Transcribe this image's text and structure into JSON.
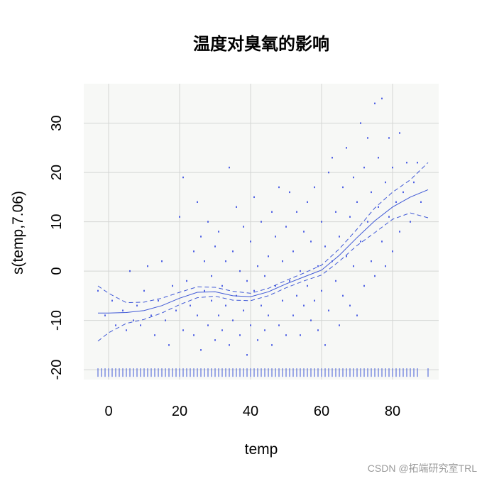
{
  "chart_data": {
    "type": "line",
    "title": "温度对臭氧的影响",
    "xlabel": "temp",
    "ylabel": "s(temp,7.06)",
    "xlim": [
      -7,
      93
    ],
    "ylim": [
      -22,
      38
    ],
    "x_ticks": [
      0,
      20,
      40,
      60,
      80
    ],
    "x_tick_labels": [
      "0",
      "20",
      "40",
      "60",
      "80"
    ],
    "y_ticks": [
      -20,
      -10,
      0,
      10,
      20,
      30
    ],
    "y_tick_labels": [
      "-20",
      "-10",
      "0",
      "10",
      "20",
      "30"
    ],
    "grid": true,
    "series": [
      {
        "style": "solid",
        "x": [
          -3,
          0,
          5,
          10,
          15,
          20,
          25,
          30,
          35,
          40,
          45,
          50,
          55,
          60,
          65,
          70,
          75,
          80,
          85,
          90
        ],
        "y": [
          -8.5,
          -8.5,
          -8.4,
          -8.0,
          -7.0,
          -5.5,
          -4.3,
          -4.2,
          -5.0,
          -5.2,
          -4.2,
          -2.6,
          -1.2,
          0.2,
          3.2,
          6.8,
          10.2,
          13.0,
          15.0,
          16.5
        ]
      },
      {
        "style": "dashed",
        "x": [
          -3,
          0,
          5,
          10,
          15,
          20,
          25,
          30,
          35,
          40,
          45,
          50,
          55,
          60,
          65,
          70,
          75,
          80,
          85,
          90
        ],
        "y": [
          -3.0,
          -4.5,
          -6.4,
          -6.3,
          -5.5,
          -4.3,
          -3.2,
          -3.3,
          -4.1,
          -4.5,
          -3.5,
          -1.9,
          -0.4,
          1.2,
          4.5,
          8.5,
          12.8,
          16.0,
          18.5,
          22.0
        ]
      },
      {
        "style": "dashed",
        "x": [
          -3,
          0,
          5,
          10,
          15,
          20,
          25,
          30,
          35,
          40,
          45,
          50,
          55,
          60,
          65,
          70,
          75,
          80,
          85,
          90
        ],
        "y": [
          -14.2,
          -12.5,
          -10.6,
          -9.8,
          -8.5,
          -6.8,
          -5.4,
          -5.1,
          -5.9,
          -6.0,
          -5.0,
          -3.4,
          -2.0,
          -0.8,
          2.0,
          5.2,
          7.8,
          10.5,
          11.8,
          10.8
        ]
      }
    ],
    "partial_residuals": {
      "note": "approximate scatter of partial residuals around the smooth",
      "points": [
        [
          -3,
          -4
        ],
        [
          -1,
          -9
        ],
        [
          1,
          -6
        ],
        [
          2,
          -11
        ],
        [
          4,
          -8
        ],
        [
          5,
          -12
        ],
        [
          6,
          0
        ],
        [
          7,
          -10
        ],
        [
          8,
          -7
        ],
        [
          9,
          -11
        ],
        [
          10,
          -4
        ],
        [
          11,
          1
        ],
        [
          12,
          -9
        ],
        [
          13,
          -13
        ],
        [
          14,
          -6
        ],
        [
          15,
          2
        ],
        [
          16,
          -10
        ],
        [
          17,
          -15
        ],
        [
          18,
          -3
        ],
        [
          19,
          -8
        ],
        [
          20,
          11
        ],
        [
          21,
          19
        ],
        [
          21,
          -12
        ],
        [
          22,
          -2
        ],
        [
          23,
          -7
        ],
        [
          24,
          4
        ],
        [
          24,
          -13
        ],
        [
          25,
          14
        ],
        [
          25,
          -9
        ],
        [
          26,
          7
        ],
        [
          26,
          -16
        ],
        [
          27,
          -4
        ],
        [
          27,
          2
        ],
        [
          28,
          -11
        ],
        [
          28,
          10
        ],
        [
          29,
          -6
        ],
        [
          29,
          -1
        ],
        [
          30,
          -14
        ],
        [
          30,
          5
        ],
        [
          31,
          -9
        ],
        [
          31,
          8
        ],
        [
          32,
          -3
        ],
        [
          32,
          -12
        ],
        [
          33,
          2
        ],
        [
          33,
          -7
        ],
        [
          34,
          21
        ],
        [
          34,
          -15
        ],
        [
          35,
          -10
        ],
        [
          35,
          4
        ],
        [
          36,
          -5
        ],
        [
          36,
          13
        ],
        [
          37,
          -13
        ],
        [
          37,
          0
        ],
        [
          38,
          -8
        ],
        [
          38,
          9
        ],
        [
          39,
          -17
        ],
        [
          39,
          -2
        ],
        [
          40,
          -11
        ],
        [
          40,
          6
        ],
        [
          41,
          -4
        ],
        [
          41,
          15
        ],
        [
          42,
          -14
        ],
        [
          42,
          1
        ],
        [
          43,
          -7
        ],
        [
          43,
          10
        ],
        [
          44,
          -12
        ],
        [
          44,
          -1
        ],
        [
          45,
          3
        ],
        [
          45,
          -9
        ],
        [
          46,
          12
        ],
        [
          46,
          -15
        ],
        [
          47,
          -3
        ],
        [
          47,
          7
        ],
        [
          48,
          -11
        ],
        [
          48,
          17
        ],
        [
          49,
          -6
        ],
        [
          49,
          2
        ],
        [
          50,
          -13
        ],
        [
          50,
          9
        ],
        [
          51,
          -2
        ],
        [
          51,
          16
        ],
        [
          52,
          -9
        ],
        [
          52,
          4
        ],
        [
          53,
          -5
        ],
        [
          53,
          12
        ],
        [
          54,
          -13
        ],
        [
          54,
          0
        ],
        [
          55,
          8
        ],
        [
          55,
          -7
        ],
        [
          56,
          14
        ],
        [
          56,
          -3
        ],
        [
          57,
          -10
        ],
        [
          57,
          6
        ],
        [
          58,
          17
        ],
        [
          58,
          -6
        ],
        [
          59,
          1
        ],
        [
          59,
          -12
        ],
        [
          60,
          10
        ],
        [
          60,
          -4
        ],
        [
          61,
          -15
        ],
        [
          61,
          5
        ],
        [
          62,
          20
        ],
        [
          62,
          -8
        ],
        [
          63,
          2
        ],
        [
          63,
          23
        ],
        [
          64,
          -2
        ],
        [
          64,
          12
        ],
        [
          65,
          -11
        ],
        [
          65,
          7
        ],
        [
          66,
          17
        ],
        [
          66,
          -5
        ],
        [
          67,
          3
        ],
        [
          67,
          25
        ],
        [
          68,
          -7
        ],
        [
          68,
          11
        ],
        [
          69,
          19
        ],
        [
          69,
          1
        ],
        [
          70,
          -9
        ],
        [
          70,
          14
        ],
        [
          71,
          6
        ],
        [
          71,
          30
        ],
        [
          72,
          -3
        ],
        [
          72,
          21
        ],
        [
          73,
          10
        ],
        [
          73,
          27
        ],
        [
          74,
          2
        ],
        [
          74,
          16
        ],
        [
          75,
          34
        ],
        [
          75,
          -1
        ],
        [
          76,
          13
        ],
        [
          76,
          23
        ],
        [
          77,
          6
        ],
        [
          77,
          35
        ],
        [
          78,
          18
        ],
        [
          78,
          1
        ],
        [
          79,
          11
        ],
        [
          79,
          27
        ],
        [
          80,
          4
        ],
        [
          80,
          21
        ],
        [
          81,
          14
        ],
        [
          82,
          8
        ],
        [
          82,
          28
        ],
        [
          83,
          16
        ],
        [
          84,
          22
        ],
        [
          85,
          10
        ],
        [
          86,
          18
        ],
        [
          87,
          22
        ],
        [
          88,
          14
        ]
      ]
    },
    "rug_x": [
      -3,
      -2,
      -1,
      0,
      1,
      2,
      3,
      4,
      5,
      6,
      7,
      8,
      9,
      10,
      11,
      12,
      13,
      14,
      15,
      16,
      17,
      18,
      19,
      20,
      21,
      22,
      23,
      24,
      25,
      26,
      27,
      28,
      29,
      30,
      31,
      32,
      33,
      34,
      35,
      36,
      37,
      38,
      39,
      40,
      41,
      42,
      43,
      44,
      45,
      46,
      47,
      48,
      49,
      50,
      51,
      52,
      53,
      54,
      55,
      56,
      57,
      58,
      59,
      60,
      61,
      62,
      63,
      64,
      65,
      66,
      67,
      68,
      69,
      70,
      71,
      72,
      73,
      74,
      75,
      76,
      77,
      78,
      79,
      80,
      81,
      82,
      83,
      84,
      85,
      86,
      87,
      90
    ],
    "colors": {
      "series": "#3f58d6",
      "points": "#2a3fe0",
      "grid": "#d4d6d4",
      "panel": "#f7f8f6"
    }
  },
  "watermark": "CSDN @拓端研究室TRL"
}
